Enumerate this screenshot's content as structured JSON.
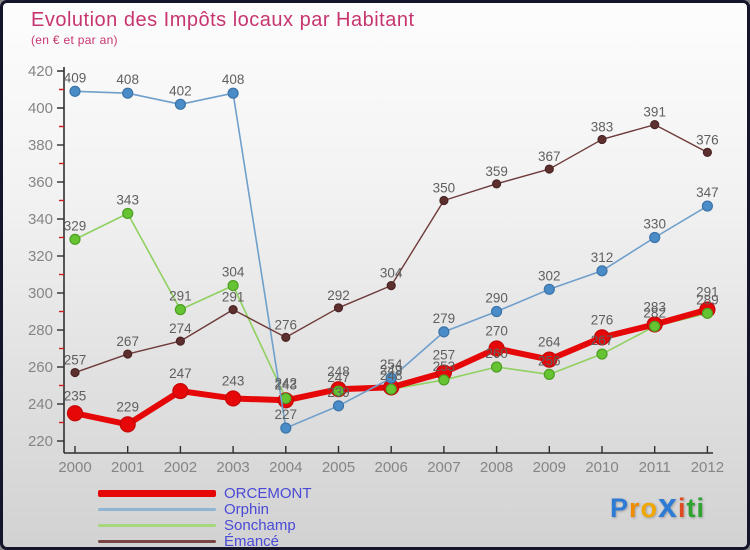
{
  "header": {
    "title": "Evolution des Impôts locaux par Habitant",
    "subtitle": "(en € et par an)",
    "title_color": "#c73570"
  },
  "chart_data": {
    "type": "line",
    "x": [
      2000,
      2001,
      2002,
      2003,
      2004,
      2005,
      2006,
      2007,
      2008,
      2009,
      2010,
      2011,
      2012
    ],
    "title": "Evolution des Impôts locaux par Habitant",
    "subtitle": "(en € et par an)",
    "xlabel": "",
    "ylabel": "",
    "ylim": [
      220,
      420
    ],
    "y_major_step": 20,
    "y_minor_step": 10,
    "grid": false,
    "legend_position": "bottom-left",
    "series": [
      {
        "name": "ORCEMONT",
        "color": "#e60808",
        "dot_fill": "#e60808",
        "dot_stroke": "#c40606",
        "line_width": 6,
        "dot_radius": 7.5,
        "label_dy": -13,
        "values": [
          235,
          229,
          247,
          243,
          242,
          248,
          249,
          257,
          270,
          264,
          276,
          283,
          291
        ]
      },
      {
        "name": "Orphin",
        "color": "#6f9fcb",
        "dot_fill": "#4a8cc7",
        "dot_stroke": "#3c74a8",
        "line_width": 1.6,
        "dot_radius": 5,
        "label_dy": -9,
        "values": [
          409,
          408,
          402,
          408,
          227,
          239,
          254,
          279,
          290,
          302,
          312,
          330,
          347
        ]
      },
      {
        "name": "Sonchamp",
        "color": "#90d060",
        "dot_fill": "#66c433",
        "dot_stroke": "#4d9e22",
        "line_width": 1.6,
        "dot_radius": 5,
        "label_dy": -9,
        "values": [
          329,
          343,
          291,
          304,
          243,
          247,
          248,
          253,
          260,
          256,
          267,
          282,
          289
        ]
      },
      {
        "name": "Émancé",
        "color": "#6e3a3a",
        "dot_fill": "#5d2f2f",
        "dot_stroke": "#4a2424",
        "line_width": 1.4,
        "dot_radius": 4,
        "label_dy": -8,
        "values": [
          257,
          267,
          274,
          291,
          276,
          292,
          304,
          350,
          359,
          367,
          383,
          391,
          376
        ]
      }
    ],
    "label_color": "#5f5f5f",
    "axis_color": "#2f2f2f",
    "tick_label_color": "#858585",
    "minor_tick_color": "#cc2020"
  },
  "legend": {
    "text_color": "#4a4ad6",
    "items": [
      {
        "label": "ORCEMONT",
        "color": "#e60808",
        "thickness": 7
      },
      {
        "label": "Orphin",
        "color": "#8fb4d4",
        "thickness": 3
      },
      {
        "label": "Sonchamp",
        "color": "#a6d97e",
        "thickness": 3
      },
      {
        "label": "Émancé",
        "color": "#7a4545",
        "thickness": 3
      }
    ]
  },
  "logo": {
    "name": "Proxiti",
    "letters": [
      {
        "ch": "P",
        "color": "#2e7bd6",
        "big": false
      },
      {
        "ch": "r",
        "color": "#f08c00",
        "big": false
      },
      {
        "ch": "o",
        "color": "#f0a800",
        "big": false
      },
      {
        "ch": "x",
        "color": "#2e7bd6",
        "big": true
      },
      {
        "ch": "i",
        "color": "#e04a20",
        "big": false
      },
      {
        "ch": "t",
        "color": "#2fa32f",
        "big": false
      },
      {
        "ch": "i",
        "color": "#2fa32f",
        "big": false
      }
    ]
  }
}
